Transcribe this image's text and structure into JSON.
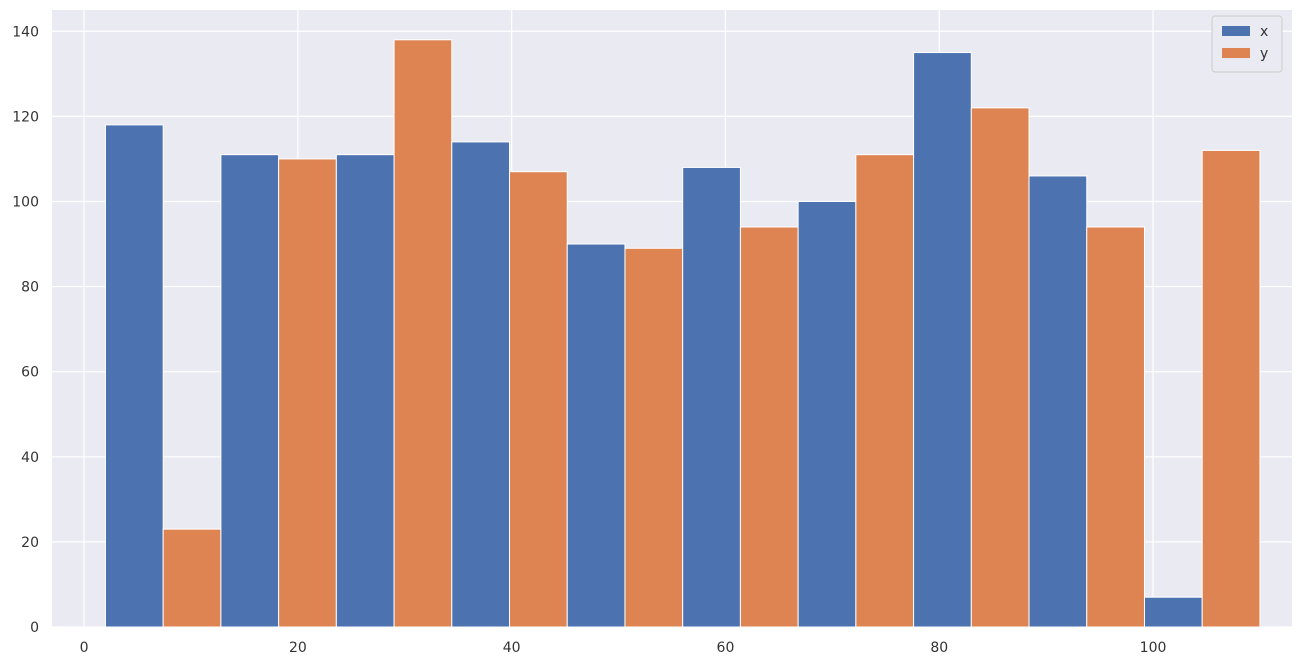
{
  "chart_data": {
    "type": "bar",
    "title": "",
    "xlabel": "",
    "ylabel": "",
    "x_bins": [
      [
        2.0,
        12.8
      ],
      [
        12.8,
        23.6
      ],
      [
        23.6,
        34.4
      ],
      [
        34.4,
        45.2
      ],
      [
        45.2,
        56.0
      ],
      [
        56.0,
        66.8
      ],
      [
        66.8,
        77.6
      ],
      [
        77.6,
        88.4
      ],
      [
        88.4,
        99.2
      ],
      [
        99.2,
        110.0
      ]
    ],
    "series": [
      {
        "name": "x",
        "color": "#4c72b0",
        "values": [
          118,
          111,
          111,
          114,
          90,
          108,
          100,
          135,
          106,
          7
        ]
      },
      {
        "name": "y",
        "color": "#dd8452",
        "values": [
          23,
          110,
          138,
          107,
          89,
          94,
          111,
          122,
          94,
          112
        ]
      }
    ],
    "xlim": [
      -3,
      113
    ],
    "ylim": [
      0,
      145
    ],
    "xticks": [
      0,
      20,
      40,
      60,
      80,
      100
    ],
    "yticks": [
      0,
      20,
      40,
      60,
      80,
      100,
      120,
      140
    ],
    "grid": true,
    "legend_position": "top-right",
    "background": "#eaeaf2"
  }
}
